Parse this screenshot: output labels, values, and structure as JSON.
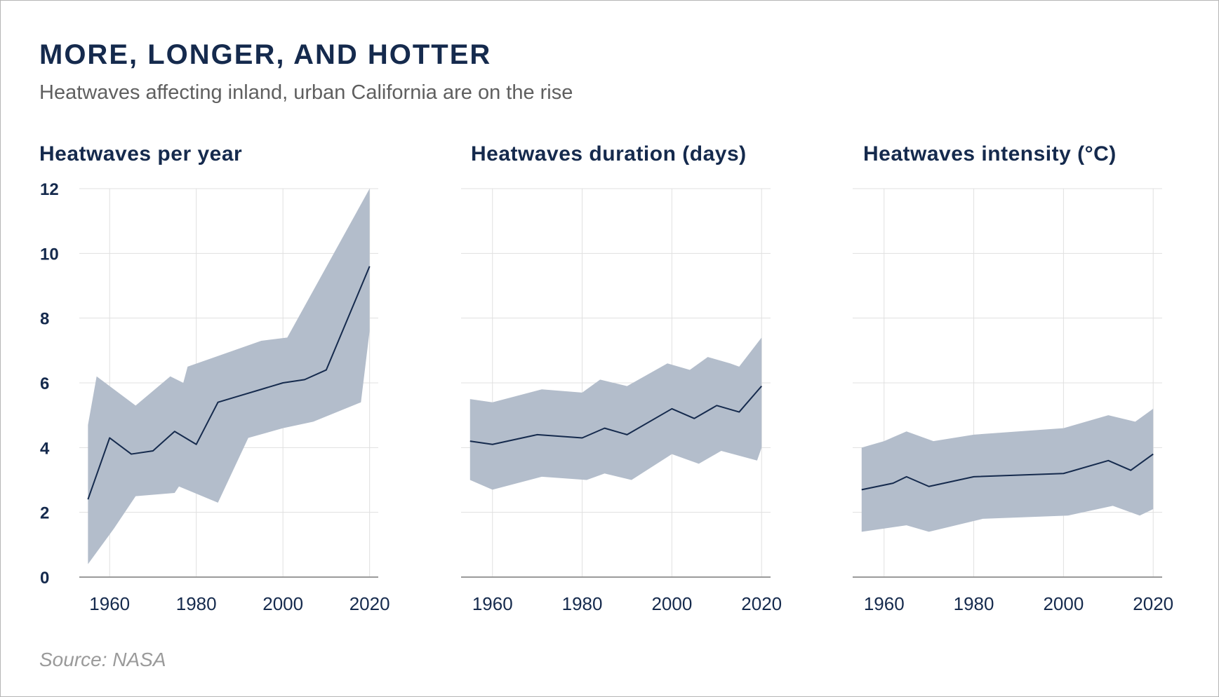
{
  "header": {
    "title": "MORE, LONGER, AND HOTTER",
    "subtitle": "Heatwaves affecting inland, urban California are on the rise"
  },
  "footer": {
    "source": "Source: NASA"
  },
  "colors": {
    "line": "#152a4d",
    "band": "#b3bdcb",
    "grid": "#e0e0e0",
    "axis": "#9a9a9a",
    "title": "#152a4d"
  },
  "chart_data": [
    {
      "type": "area",
      "title": "Heatwaves per year",
      "xlabel": "",
      "ylabel": "",
      "xlim": [
        1953,
        2022
      ],
      "ylim": [
        0,
        12
      ],
      "xticks": [
        "1960",
        "1980",
        "2000",
        "2020"
      ],
      "yticks": [
        "0",
        "2",
        "4",
        "6",
        "8",
        "10",
        "12"
      ],
      "grid": true,
      "series": [
        {
          "role": "line",
          "x": [
            1955,
            1960,
            1965,
            1970,
            1975,
            1980,
            1985,
            1990,
            1995,
            2000,
            2005,
            2010,
            2015,
            2020
          ],
          "y": [
            2.4,
            4.3,
            3.8,
            3.9,
            4.5,
            4.1,
            5.4,
            5.6,
            5.8,
            6.0,
            6.1,
            6.4,
            8.0,
            9.6
          ]
        },
        {
          "role": "band-upper",
          "x": [
            1955,
            1957,
            1966,
            1974,
            1977,
            1978,
            1995,
            2001,
            2020
          ],
          "y": [
            4.7,
            6.2,
            5.3,
            6.2,
            6.0,
            6.5,
            7.3,
            7.4,
            12.0
          ]
        },
        {
          "role": "band-lower",
          "x": [
            1955,
            1961,
            1966,
            1975,
            1976,
            1985,
            1992,
            2000,
            2007,
            2018,
            2020
          ],
          "y": [
            0.4,
            1.5,
            2.5,
            2.6,
            2.8,
            2.3,
            4.3,
            4.6,
            4.8,
            5.4,
            7.6
          ]
        }
      ]
    },
    {
      "type": "area",
      "title": "Heatwaves duration (days)",
      "xlabel": "",
      "ylabel": "",
      "xlim": [
        1953,
        2022
      ],
      "ylim": [
        0,
        12
      ],
      "xticks": [
        "1960",
        "1980",
        "2000",
        "2020"
      ],
      "grid": true,
      "series": [
        {
          "role": "line",
          "x": [
            1955,
            1960,
            1970,
            1980,
            1985,
            1990,
            2000,
            2005,
            2010,
            2015,
            2020
          ],
          "y": [
            4.2,
            4.1,
            4.4,
            4.3,
            4.6,
            4.4,
            5.2,
            4.9,
            5.3,
            5.1,
            5.9
          ]
        },
        {
          "role": "band-upper",
          "x": [
            1955,
            1960,
            1971,
            1980,
            1984,
            1990,
            1999,
            2004,
            2008,
            2013,
            2015,
            2020
          ],
          "y": [
            5.5,
            5.4,
            5.8,
            5.7,
            6.1,
            5.9,
            6.6,
            6.4,
            6.8,
            6.6,
            6.5,
            7.4
          ]
        },
        {
          "role": "band-lower",
          "x": [
            1955,
            1960,
            1971,
            1981,
            1985,
            1991,
            2000,
            2006,
            2011,
            2019,
            2020
          ],
          "y": [
            3.0,
            2.7,
            3.1,
            3.0,
            3.2,
            3.0,
            3.8,
            3.5,
            3.9,
            3.6,
            4.0
          ]
        }
      ]
    },
    {
      "type": "area",
      "title": "Heatwaves intensity (°C)",
      "xlabel": "",
      "ylabel": "",
      "xlim": [
        1953,
        2022
      ],
      "ylim": [
        0,
        12
      ],
      "xticks": [
        "1960",
        "1980",
        "2000",
        "2020"
      ],
      "grid": true,
      "series": [
        {
          "role": "line",
          "x": [
            1955,
            1962,
            1965,
            1970,
            1980,
            2000,
            2010,
            2015,
            2020
          ],
          "y": [
            2.7,
            2.9,
            3.1,
            2.8,
            3.1,
            3.2,
            3.6,
            3.3,
            3.8
          ]
        },
        {
          "role": "band-upper",
          "x": [
            1955,
            1960,
            1965,
            1971,
            1980,
            2000,
            2010,
            2016,
            2020
          ],
          "y": [
            4.0,
            4.2,
            4.5,
            4.2,
            4.4,
            4.6,
            5.0,
            4.8,
            5.2
          ]
        },
        {
          "role": "band-lower",
          "x": [
            1955,
            1965,
            1970,
            1982,
            2001,
            2011,
            2017,
            2020
          ],
          "y": [
            1.4,
            1.6,
            1.4,
            1.8,
            1.9,
            2.2,
            1.9,
            2.1
          ]
        }
      ]
    }
  ]
}
